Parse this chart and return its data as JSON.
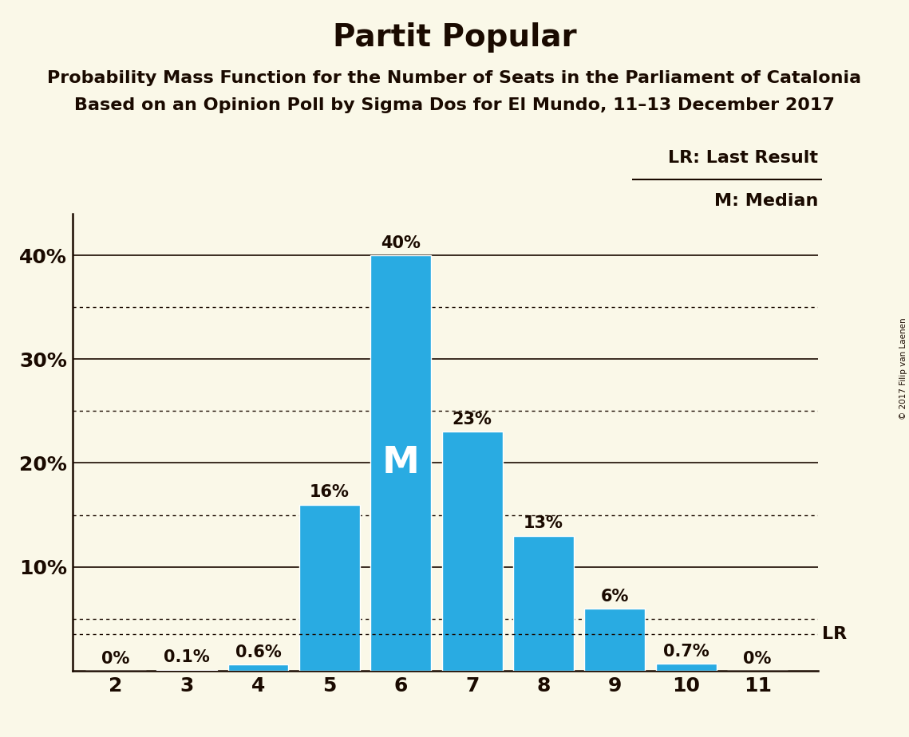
{
  "title": "Partit Popular",
  "subtitle1": "Probability Mass Function for the Number of Seats in the Parliament of Catalonia",
  "subtitle2": "Based on an Opinion Poll by Sigma Dos for El Mundo, 11–13 December 2017",
  "copyright": "© 2017 Filip van Laenen",
  "categories": [
    2,
    3,
    4,
    5,
    6,
    7,
    8,
    9,
    10,
    11
  ],
  "values": [
    0.0,
    0.1,
    0.6,
    16.0,
    40.0,
    23.0,
    13.0,
    6.0,
    0.7,
    0.0
  ],
  "labels": [
    "0%",
    "0.1%",
    "0.6%",
    "16%",
    "40%",
    "23%",
    "13%",
    "6%",
    "0.7%",
    "0%"
  ],
  "bar_color": "#29abe2",
  "background_color": "#faf8e8",
  "text_color": "#1a0a00",
  "median_bar": 6,
  "median_label": "M",
  "lr_value": 3.5,
  "lr_label": "LR",
  "lr_legend": "LR: Last Result",
  "m_legend": "M: Median",
  "ylim": [
    0,
    44
  ],
  "solid_lines": [
    10.0,
    20.0,
    30.0,
    40.0
  ],
  "dotted_lines": [
    5.0,
    15.0,
    25.0,
    35.0
  ],
  "title_fontsize": 28,
  "subtitle_fontsize": 16,
  "label_fontsize": 15,
  "tick_fontsize": 18,
  "legend_fontsize": 16,
  "median_fontsize": 34,
  "bar_width": 0.85
}
